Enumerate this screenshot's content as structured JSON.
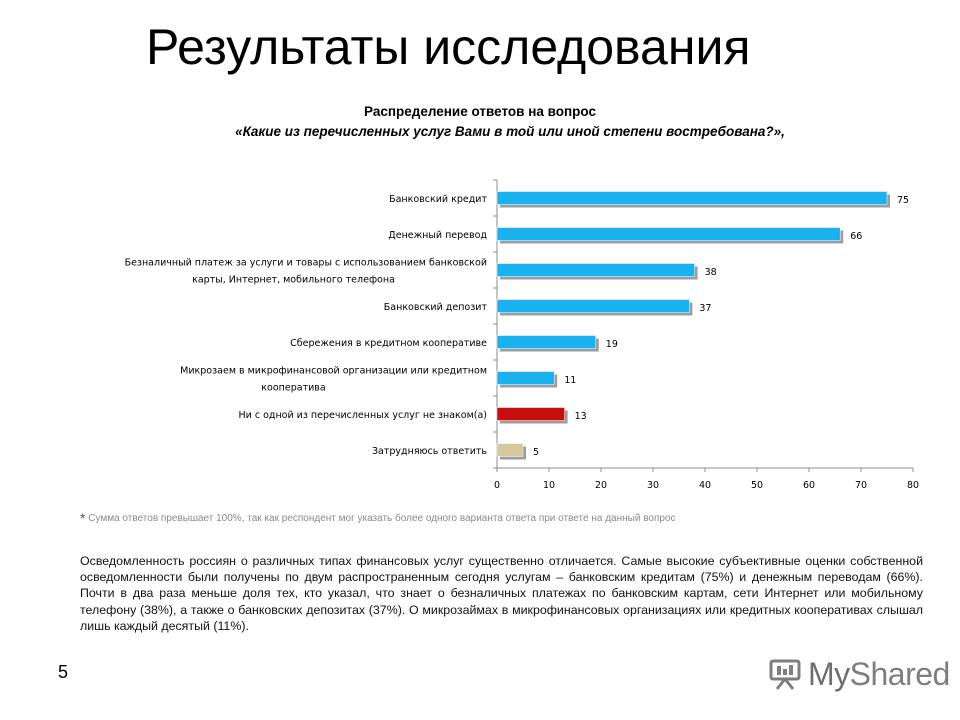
{
  "page": {
    "title": "Результаты исследования",
    "page_number": "5"
  },
  "chart_data": {
    "type": "bar",
    "orientation": "horizontal",
    "title": "Распределение ответов на вопрос",
    "subtitle": "«Какие из перечисленных услуг Вами в той или иной степени востребована?»,",
    "categories": [
      [
        "Банковский кредит"
      ],
      [
        "Денежный перевод"
      ],
      [
        "Безналичный платеж за услуги и товары с использованием банковской",
        "карты, Интернет, мобильного телефона"
      ],
      [
        "Банковский депозит"
      ],
      [
        "Сбережения в кредитном кооперативе"
      ],
      [
        "Микрозаем в микрофинансовой организации или кредитном",
        "кооператива"
      ],
      [
        "Ни с одной из перечисленных услуг не знаком(а)"
      ],
      [
        "Затрудняюсь ответить"
      ]
    ],
    "values": [
      75,
      66,
      38,
      37,
      19,
      11,
      13,
      5
    ],
    "data_labels": [
      "75",
      "66",
      "38",
      "37",
      "19",
      "11",
      "13",
      "5"
    ],
    "bar_colors": [
      "#1ab2ee",
      "#1ab2ee",
      "#1ab2ee",
      "#1ab2ee",
      "#1ab2ee",
      "#1ab2ee",
      "#c80d0d",
      "#d4c89c"
    ],
    "xlim": [
      0,
      80
    ],
    "x_ticks": [
      "0",
      "10",
      "20",
      "30",
      "40",
      "50",
      "60",
      "70",
      "80"
    ],
    "grid": false,
    "legend": "none"
  },
  "footnote": {
    "star": "*",
    "text": "Сумма ответов превышает 100%, так как респондент мог указать более одного варианта ответа при ответе на данный вопрос"
  },
  "body_text": "Осведомленность россиян о различных типах финансовых услуг существенно отличается. Самые высокие субъективные оценки собственной осведомленности были получены по двум распространенным сегодня услугам – банковским кредитам (75%) и денежным переводам (66%). Почти в два раза меньше доля тех, кто указал, что знает о безналичных платежах по банковским картам, сети Интернет или мобильному телефону (38%), а также о банковских депозитах (37%). О микрозаймах в микрофинансовых организациях или кредитных кооперативах слышал лишь каждый десятый (11%).",
  "logo": {
    "my": "My",
    "rest": "Shared",
    "icon": "presentation-board-icon",
    "color": "#7e7e7e"
  }
}
